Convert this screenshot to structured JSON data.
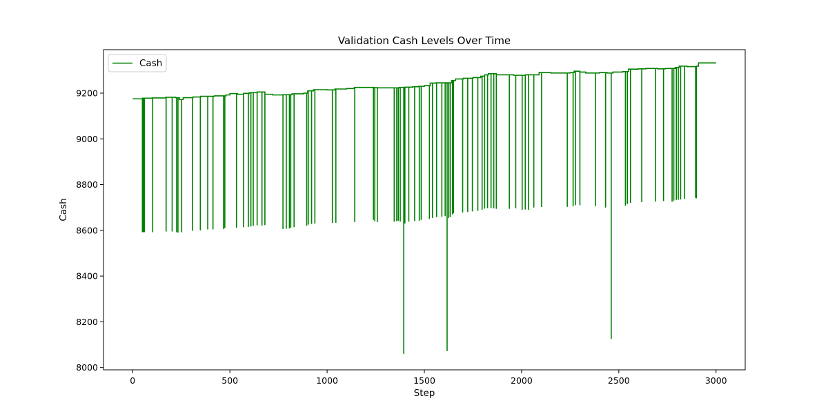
{
  "chart_data": {
    "type": "line",
    "title": "Validation Cash Levels Over Time",
    "xlabel": "Step",
    "ylabel": "Cash",
    "xlim": [
      -150,
      3150
    ],
    "ylim": [
      7990,
      9390
    ],
    "xticks": [
      0,
      500,
      1000,
      1500,
      2000,
      2500,
      3000
    ],
    "yticks": [
      8000,
      8200,
      8400,
      8600,
      8800,
      9000,
      9200
    ],
    "grid": false,
    "legend": {
      "placement": "upper-left"
    },
    "series": [
      {
        "name": "Cash",
        "color": "#008000",
        "baseline": [
          [
            0,
            9175
          ],
          [
            40,
            9175
          ],
          [
            50,
            9178
          ],
          [
            100,
            9179
          ],
          [
            170,
            9182
          ],
          [
            220,
            9180
          ],
          [
            240,
            9172
          ],
          [
            260,
            9180
          ],
          [
            310,
            9183
          ],
          [
            350,
            9186
          ],
          [
            420,
            9188
          ],
          [
            480,
            9192
          ],
          [
            500,
            9198
          ],
          [
            540,
            9195
          ],
          [
            570,
            9199
          ],
          [
            600,
            9202
          ],
          [
            640,
            9205
          ],
          [
            680,
            9195
          ],
          [
            720,
            9192
          ],
          [
            770,
            9193
          ],
          [
            820,
            9197
          ],
          [
            880,
            9200
          ],
          [
            900,
            9210
          ],
          [
            930,
            9215
          ],
          [
            1000,
            9214
          ],
          [
            1040,
            9218
          ],
          [
            1100,
            9220
          ],
          [
            1140,
            9225
          ],
          [
            1240,
            9224
          ],
          [
            1260,
            9223
          ],
          [
            1350,
            9223
          ],
          [
            1370,
            9225
          ],
          [
            1400,
            9226
          ],
          [
            1440,
            9228
          ],
          [
            1470,
            9230
          ],
          [
            1500,
            9233
          ],
          [
            1530,
            9244
          ],
          [
            1560,
            9245
          ],
          [
            1620,
            9245
          ],
          [
            1640,
            9255
          ],
          [
            1660,
            9262
          ],
          [
            1700,
            9265
          ],
          [
            1750,
            9268
          ],
          [
            1790,
            9274
          ],
          [
            1810,
            9280
          ],
          [
            1830,
            9285
          ],
          [
            1870,
            9280
          ],
          [
            1900,
            9280
          ],
          [
            1960,
            9278
          ],
          [
            2000,
            9278
          ],
          [
            2020,
            9280
          ],
          [
            2060,
            9280
          ],
          [
            2090,
            9290
          ],
          [
            2150,
            9288
          ],
          [
            2250,
            9290
          ],
          [
            2270,
            9296
          ],
          [
            2300,
            9292
          ],
          [
            2330,
            9288
          ],
          [
            2400,
            9290
          ],
          [
            2440,
            9288
          ],
          [
            2470,
            9292
          ],
          [
            2520,
            9294
          ],
          [
            2550,
            9305
          ],
          [
            2600,
            9306
          ],
          [
            2640,
            9308
          ],
          [
            2700,
            9306
          ],
          [
            2740,
            9308
          ],
          [
            2790,
            9312
          ],
          [
            2810,
            9318
          ],
          [
            2850,
            9316
          ],
          [
            2900,
            9318
          ],
          [
            2910,
            9332
          ],
          [
            3000,
            9332
          ]
        ],
        "spikes": [
          [
            50,
            8592
          ],
          [
            52,
            8592
          ],
          [
            55,
            8592
          ],
          [
            58,
            8592
          ],
          [
            60,
            8592
          ],
          [
            103,
            8592
          ],
          [
            172,
            8595
          ],
          [
            203,
            8595
          ],
          [
            226,
            8592
          ],
          [
            233,
            8590
          ],
          [
            252,
            8592
          ],
          [
            308,
            8598
          ],
          [
            348,
            8600
          ],
          [
            386,
            8604
          ],
          [
            413,
            8604
          ],
          [
            467,
            8606
          ],
          [
            474,
            8610
          ],
          [
            534,
            8612
          ],
          [
            570,
            8614
          ],
          [
            595,
            8615
          ],
          [
            608,
            8617
          ],
          [
            620,
            8620
          ],
          [
            640,
            8622
          ],
          [
            665,
            8621
          ],
          [
            680,
            8623
          ],
          [
            773,
            8606
          ],
          [
            790,
            8607
          ],
          [
            806,
            8608
          ],
          [
            813,
            8612
          ],
          [
            830,
            8614
          ],
          [
            895,
            8620
          ],
          [
            903,
            8625
          ],
          [
            920,
            8628
          ],
          [
            937,
            8630
          ],
          [
            1027,
            8632
          ],
          [
            1045,
            8633
          ],
          [
            1142,
            8636
          ],
          [
            1238,
            8646
          ],
          [
            1245,
            8640
          ],
          [
            1258,
            8636
          ],
          [
            1345,
            8638
          ],
          [
            1358,
            8640
          ],
          [
            1366,
            8642
          ],
          [
            1376,
            8638
          ],
          [
            1394,
            8060
          ],
          [
            1400,
            8630
          ],
          [
            1420,
            8638
          ],
          [
            1450,
            8641
          ],
          [
            1474,
            8642
          ],
          [
            1484,
            8646
          ],
          [
            1526,
            8650
          ],
          [
            1542,
            8654
          ],
          [
            1563,
            8658
          ],
          [
            1590,
            8660
          ],
          [
            1607,
            8662
          ],
          [
            1617,
            8072
          ],
          [
            1625,
            8654
          ],
          [
            1633,
            8658
          ],
          [
            1645,
            8670
          ],
          [
            1650,
            8675
          ],
          [
            1697,
            8678
          ],
          [
            1723,
            8680
          ],
          [
            1747,
            8683
          ],
          [
            1775,
            8685
          ],
          [
            1797,
            8690
          ],
          [
            1810,
            8695
          ],
          [
            1825,
            8697
          ],
          [
            1843,
            8697
          ],
          [
            1857,
            8696
          ],
          [
            1870,
            8694
          ],
          [
            1937,
            8694
          ],
          [
            1970,
            8696
          ],
          [
            2003,
            8690
          ],
          [
            2019,
            8691
          ],
          [
            2035,
            8690
          ],
          [
            2063,
            8700
          ],
          [
            2103,
            8702
          ],
          [
            2235,
            8703
          ],
          [
            2265,
            8705
          ],
          [
            2277,
            8710
          ],
          [
            2300,
            8710
          ],
          [
            2380,
            8706
          ],
          [
            2432,
            8700
          ],
          [
            2461,
            8125
          ],
          [
            2534,
            8708
          ],
          [
            2544,
            8715
          ],
          [
            2560,
            8720
          ],
          [
            2618,
            8723
          ],
          [
            2689,
            8726
          ],
          [
            2730,
            8728
          ],
          [
            2774,
            8725
          ],
          [
            2783,
            8730
          ],
          [
            2796,
            8733
          ],
          [
            2806,
            8734
          ],
          [
            2818,
            8735
          ],
          [
            2838,
            8738
          ],
          [
            2895,
            8742
          ],
          [
            2899,
            8740
          ]
        ]
      }
    ]
  }
}
